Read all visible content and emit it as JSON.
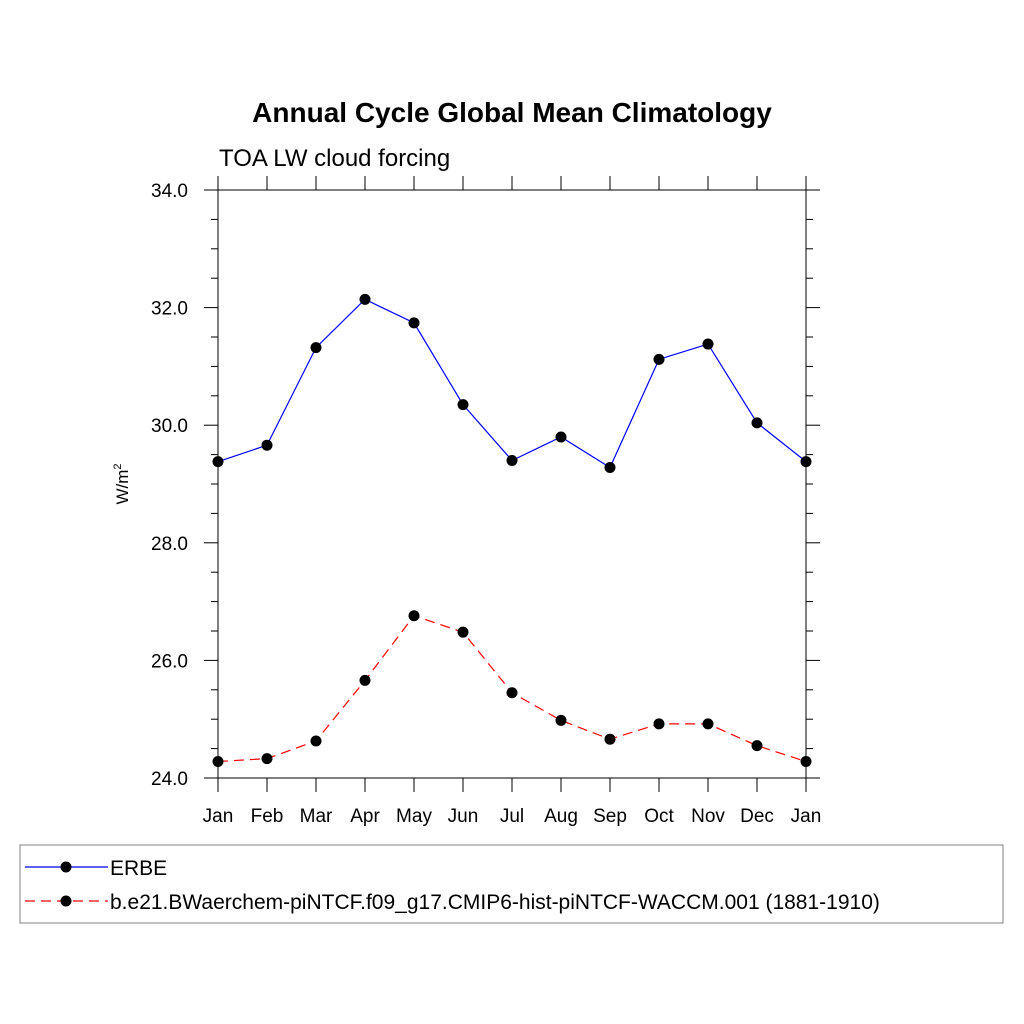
{
  "chart_data": {
    "type": "line",
    "title": "Annual Cycle Global Mean Climatology",
    "subtitle": "TOA LW cloud forcing",
    "ylabel": "W/m",
    "ylabel_sup": "2",
    "ylim": [
      24.0,
      34.0
    ],
    "yticks": [
      "24.0",
      "26.0",
      "28.0",
      "30.0",
      "32.0",
      "34.0"
    ],
    "categories": [
      "Jan",
      "Feb",
      "Mar",
      "Apr",
      "May",
      "Jun",
      "Jul",
      "Aug",
      "Sep",
      "Oct",
      "Nov",
      "Dec",
      "Jan"
    ],
    "grid": false,
    "legend_position": "bottom",
    "series": [
      {
        "name": "ERBE",
        "color": "#0000ff",
        "dash": "solid",
        "values": [
          29.38,
          29.66,
          31.32,
          32.14,
          31.74,
          30.35,
          29.4,
          29.8,
          29.28,
          31.12,
          31.38,
          30.04,
          29.38
        ]
      },
      {
        "name": "b.e21.BWaerchem-piNTCF.f09_g17.CMIP6-hist-piNTCF-WACCM.001 (1881-1910)",
        "color": "#ff0000",
        "dash": "dashed",
        "values": [
          24.28,
          24.33,
          24.63,
          25.66,
          26.76,
          26.48,
          25.45,
          24.98,
          24.66,
          24.92,
          24.92,
          24.55,
          24.28
        ]
      }
    ]
  }
}
